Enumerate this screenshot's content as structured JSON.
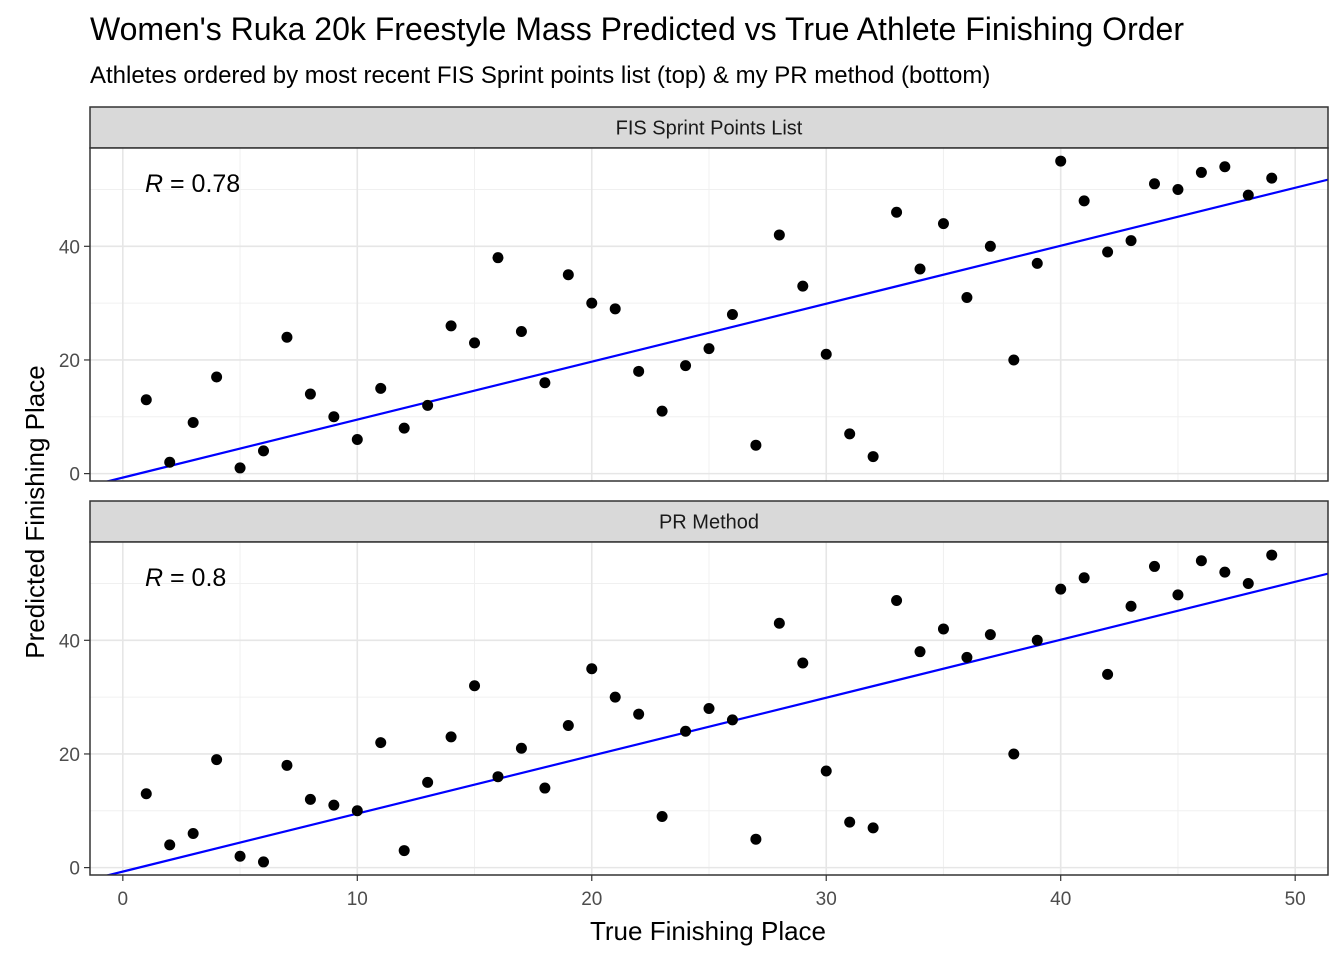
{
  "chart_data": {
    "type": "scatter",
    "title": "Women's Ruka 20k Freestyle Mass Predicted vs True Athlete Finishing Order",
    "subtitle": "Athletes ordered by most recent FIS Sprint points list (top) & my PR method (bottom)",
    "xlabel": "True Finishing Place",
    "ylabel": "Predicted Finishing Place",
    "xlim": [
      -1.4,
      51.4
    ],
    "ylim": [
      -1.3,
      57.3
    ],
    "x_ticks": [
      "0",
      "10",
      "20",
      "30",
      "40",
      "50"
    ],
    "y_ticks": [
      "0",
      "20",
      "40"
    ],
    "grid": true,
    "point_color": "#000000",
    "line_color": "#0000ff",
    "panels": [
      {
        "strip": "FIS Sprint Points List",
        "r_symbol": "R",
        "r_value": " = 0.78",
        "fit": {
          "intercept": -0.7,
          "slope": 1.02
        },
        "x": [
          1,
          2,
          3,
          4,
          5,
          6,
          7,
          8,
          9,
          10,
          11,
          12,
          13,
          14,
          15,
          16,
          17,
          18,
          19,
          20,
          21,
          22,
          23,
          24,
          25,
          26,
          27,
          28,
          29,
          30,
          31,
          32,
          33,
          34,
          35,
          36,
          37,
          38,
          39,
          40,
          41,
          42,
          43,
          44,
          45,
          46,
          47,
          48,
          49
        ],
        "y": [
          13,
          2,
          9,
          17,
          1,
          4,
          24,
          14,
          10,
          6,
          15,
          8,
          12,
          26,
          23,
          38,
          25,
          16,
          35,
          30,
          29,
          18,
          11,
          19,
          22,
          28,
          5,
          42,
          33,
          21,
          7,
          3,
          46,
          36,
          44,
          31,
          40,
          20,
          37,
          55,
          48,
          39,
          41,
          51,
          50,
          53,
          54,
          49,
          52
        ]
      },
      {
        "strip": "PR Method",
        "r_symbol": "R",
        "r_value": " = 0.8",
        "fit": {
          "intercept": -0.7,
          "slope": 1.02
        },
        "x": [
          1,
          2,
          3,
          4,
          5,
          6,
          7,
          8,
          9,
          10,
          11,
          12,
          13,
          14,
          15,
          16,
          17,
          18,
          19,
          20,
          21,
          22,
          23,
          24,
          25,
          26,
          27,
          28,
          29,
          30,
          31,
          32,
          33,
          34,
          35,
          36,
          37,
          38,
          39,
          40,
          41,
          42,
          43,
          44,
          45,
          46,
          47,
          48,
          49
        ],
        "y": [
          13,
          4,
          6,
          19,
          2,
          1,
          18,
          12,
          11,
          10,
          22,
          3,
          15,
          23,
          32,
          16,
          21,
          14,
          25,
          35,
          30,
          27,
          9,
          24,
          28,
          26,
          5,
          43,
          36,
          17,
          8,
          7,
          47,
          38,
          42,
          37,
          41,
          20,
          40,
          49,
          51,
          34,
          46,
          53,
          48,
          54,
          52,
          50,
          55
        ]
      }
    ]
  }
}
